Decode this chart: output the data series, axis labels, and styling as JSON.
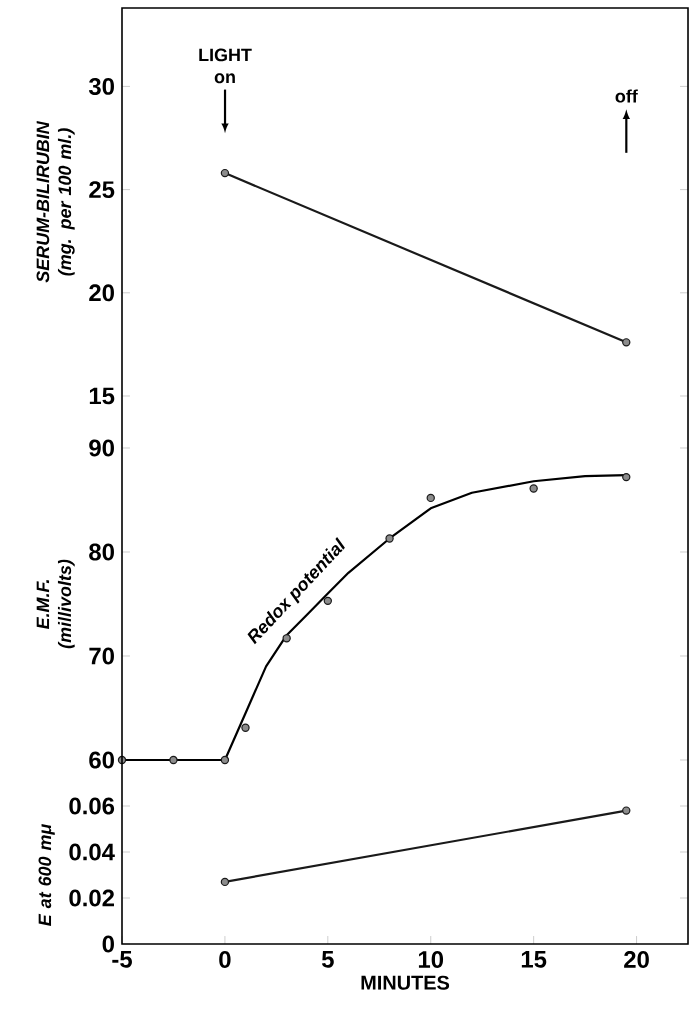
{
  "chart_data": [
    {
      "type": "line",
      "ylabel": "SERUM-BILIRUBIN (mg. per 100 ml.)",
      "xlim": [
        -5,
        22.5
      ],
      "ylim": [
        15,
        33.8
      ],
      "yticks": [
        15,
        20,
        25,
        30
      ],
      "tick_labels": "y",
      "marker": "circle",
      "series": [
        {
          "color": "#1a1a1a",
          "x": [
            0,
            19.5
          ],
          "values": [
            25.8,
            17.6
          ]
        }
      ],
      "annotations": [
        "LIGHT on",
        "off"
      ]
    },
    {
      "type": "line",
      "ylabel": "E.M.F. (millivolts)",
      "xlim": [
        -5,
        22.5
      ],
      "ylim": [
        60,
        90
      ],
      "yticks": [
        60,
        70,
        80,
        90
      ],
      "tick_labels": "y",
      "marker": "circle",
      "series": [
        {
          "type": "scatter",
          "color": "#1a1a1a",
          "x": [
            -5,
            -2.5,
            0,
            1,
            3,
            5,
            8,
            10,
            15,
            19.5
          ],
          "values": [
            60,
            60,
            60,
            63.1,
            71.7,
            75.3,
            81.3,
            85.2,
            86.1,
            87.2
          ]
        },
        {
          "type": "line",
          "name": "Redox potential",
          "marker": "none",
          "color": "#000000",
          "x": [
            -5,
            0,
            1,
            2,
            3,
            4,
            5,
            6,
            8,
            10,
            12,
            15,
            17.5,
            19.5
          ],
          "values": [
            60,
            60,
            64.5,
            69,
            72,
            74,
            76,
            78,
            81.3,
            84.2,
            85.7,
            86.8,
            87.3,
            87.4
          ]
        }
      ]
    },
    {
      "type": "line",
      "ylabel": "E at 600 mμ",
      "xlabel": "MINUTES",
      "xlim": [
        -5,
        22.5
      ],
      "xticks": [
        -5,
        0,
        5,
        10,
        15,
        20
      ],
      "ylim": [
        0,
        0.06
      ],
      "marker": "circle",
      "yticks": [
        0,
        0.02,
        0.04,
        0.06
      ],
      "series": [
        {
          "color": "#1a1a1a",
          "x": [
            0,
            19.5
          ],
          "values": [
            0.027,
            0.058
          ]
        }
      ]
    }
  ]
}
